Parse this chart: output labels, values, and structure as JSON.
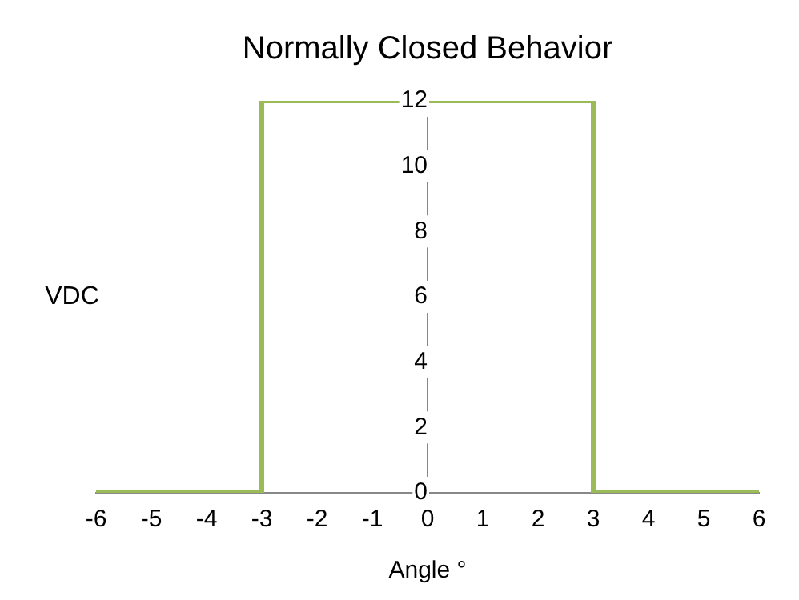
{
  "chart_data": {
    "type": "line",
    "title": "Normally Closed Behavior",
    "xlabel": "Angle °",
    "ylabel": "VDC",
    "x": [
      -6,
      -3,
      -3,
      3,
      3,
      6
    ],
    "series": [
      {
        "color": "#9bbb59",
        "values": [
          0,
          0,
          12,
          12,
          0,
          0
        ]
      }
    ],
    "xlim": [
      -6,
      6
    ],
    "xticks": [
      -6,
      -5,
      -4,
      -3,
      -2,
      -1,
      0,
      1,
      2,
      3,
      4,
      5,
      6
    ],
    "ylim": [
      0,
      12
    ],
    "yticks": [
      0,
      2,
      4,
      6,
      8,
      10,
      12
    ],
    "grid": false,
    "legend": false,
    "marker": "none",
    "line_style": "solid"
  }
}
